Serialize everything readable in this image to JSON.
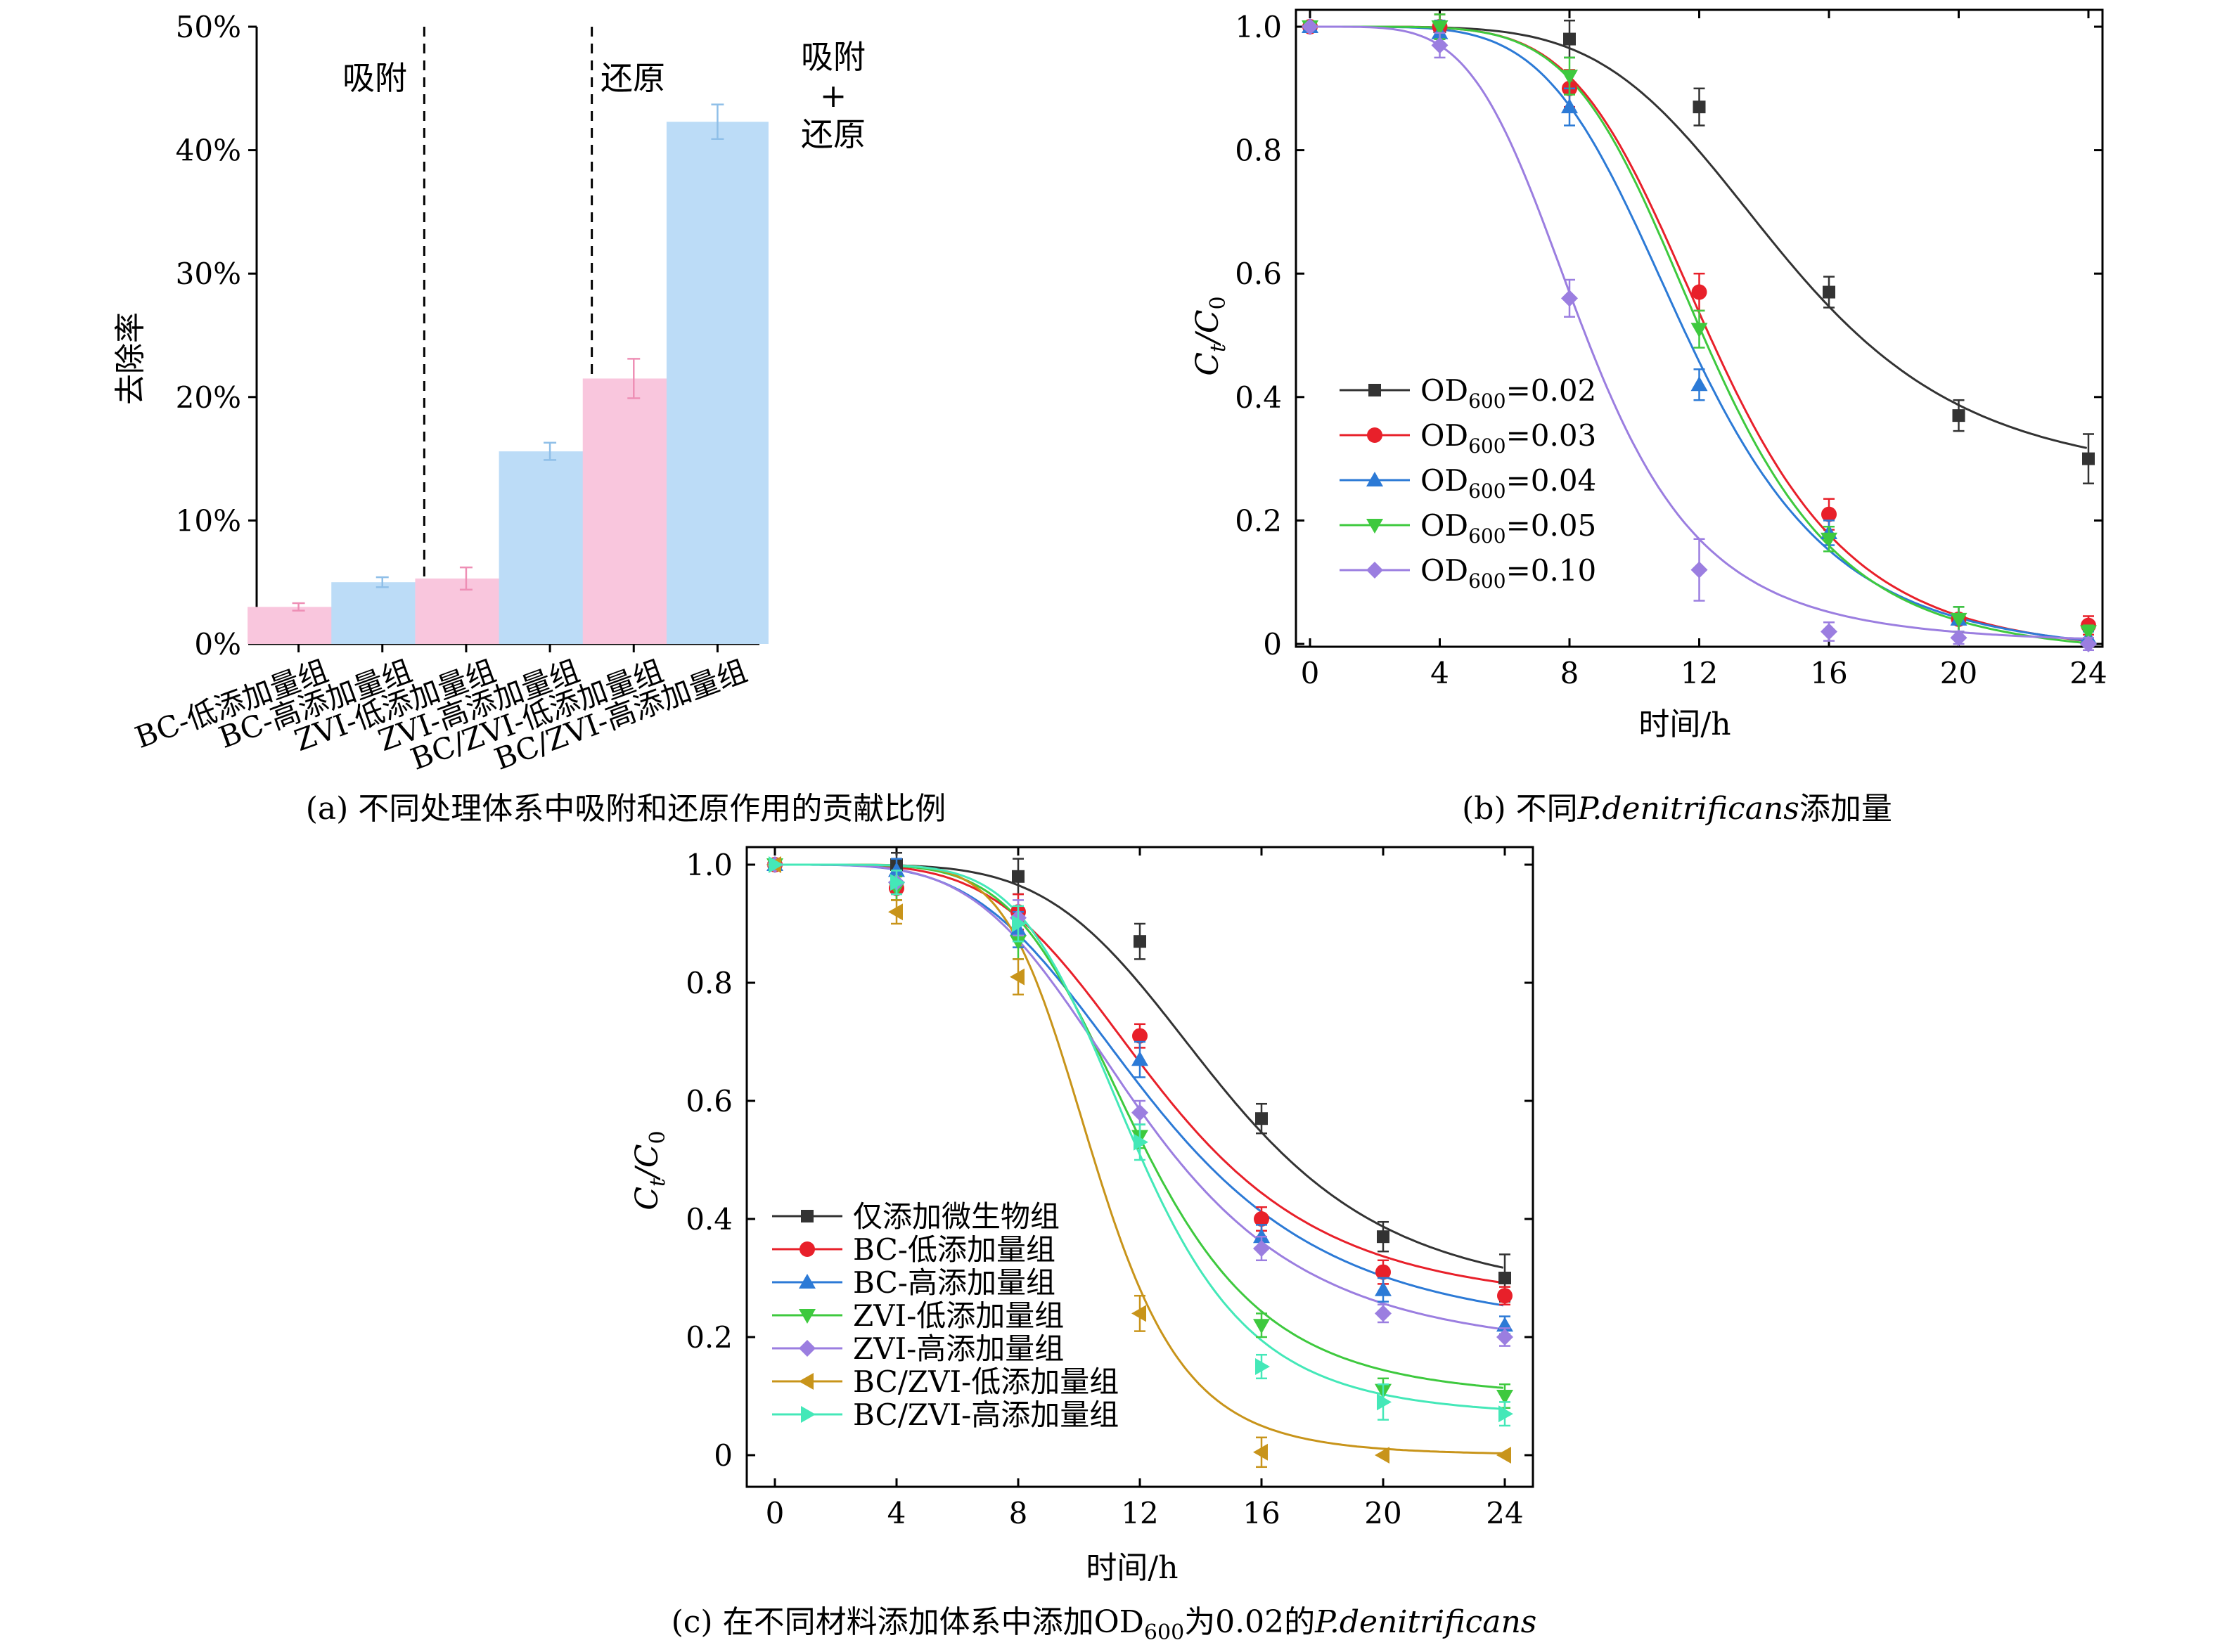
{
  "chart_data": [
    {
      "id": "a",
      "type": "bar",
      "caption": "(a) 不同处理体系中吸附和还原作用的贡献比例",
      "ylabel": "去除率",
      "ylim": [
        0,
        50
      ],
      "yticks": [
        "0%",
        "10%",
        "20%",
        "30%",
        "40%",
        "50%"
      ],
      "categories": [
        "BC-低添加量组",
        "BC-高添加量组",
        "ZVI-低添加量组",
        "ZVI-高添加量组",
        "BC/ZVI-低添加量组",
        "BC/ZVI-高添加量组"
      ],
      "values": [
        3.0,
        5.0,
        5.3,
        15.6,
        21.5,
        42.3
      ],
      "errors": [
        0.3,
        0.4,
        0.9,
        0.7,
        1.6,
        1.4
      ],
      "colors": [
        "#f9c6dd",
        "#bcdcf7",
        "#f9c6dd",
        "#bcdcf7",
        "#f9c6dd",
        "#bcdcf7"
      ],
      "error_colors": [
        "#ee8fb5",
        "#8fbfe8",
        "#ee8fb5",
        "#8fbfe8",
        "#ee8fb5",
        "#8fbfe8"
      ],
      "regions": [
        "吸附",
        "还原",
        "吸附",
        "+",
        "还原"
      ]
    },
    {
      "id": "b",
      "type": "line",
      "caption_prefix": "(b) 不同",
      "caption_italic": "P.denitrificans",
      "caption_suffix": "添加量",
      "xlabel": "时间/h",
      "ylabel_main": "C",
      "ylabel_sub1": "t",
      "ylabel_mid": "/C",
      "ylabel_sub2": "0",
      "xlim": [
        0,
        24
      ],
      "ylim": [
        0,
        1.0
      ],
      "xticks": [
        "0",
        "4",
        "8",
        "12",
        "16",
        "20",
        "24"
      ],
      "yticks": [
        "0",
        "0.2",
        "0.4",
        "0.6",
        "0.8",
        "1.0"
      ],
      "x": [
        0,
        4,
        8,
        12,
        16,
        20,
        24
      ],
      "series": [
        {
          "name_main": "OD",
          "name_sub": "600",
          "name_suffix": "=0.02",
          "color": "#333333",
          "marker": "square",
          "values": [
            1.0,
            1.0,
            0.98,
            0.87,
            0.57,
            0.37,
            0.3
          ],
          "errors": [
            0.0,
            0.02,
            0.03,
            0.03,
            0.025,
            0.025,
            0.04
          ],
          "fit": {
            "bottom": 0.26,
            "x0": 14.6,
            "p": 5.0
          }
        },
        {
          "name_main": "OD",
          "name_sub": "600",
          "name_suffix": "=0.03",
          "color": "#e8202a",
          "marker": "circle",
          "values": [
            1.0,
            1.0,
            0.9,
            0.57,
            0.21,
            0.04,
            0.03
          ],
          "errors": [
            0.0,
            0.02,
            0.03,
            0.03,
            0.025,
            0.02,
            0.015
          ],
          "fit": {
            "bottom": -0.02,
            "x0": 12.4,
            "p": 5.6
          }
        },
        {
          "name_main": "OD",
          "name_sub": "600",
          "name_suffix": "=0.04",
          "color": "#2c7ad6",
          "marker": "triangle-up",
          "values": [
            1.0,
            0.99,
            0.87,
            0.42,
            0.18,
            0.04,
            0.01
          ],
          "errors": [
            0.0,
            0.02,
            0.03,
            0.025,
            0.02,
            0.02,
            0.01
          ],
          "fit": {
            "bottom": -0.02,
            "x0": 11.7,
            "p": 5.1
          }
        },
        {
          "name_main": "OD",
          "name_sub": "600",
          "name_suffix": "=0.05",
          "color": "#3ec93e",
          "marker": "triangle-down",
          "values": [
            1.0,
            1.0,
            0.92,
            0.51,
            0.17,
            0.04,
            0.02
          ],
          "errors": [
            0.0,
            0.02,
            0.03,
            0.03,
            0.02,
            0.02,
            0.01
          ],
          "fit": {
            "bottom": -0.02,
            "x0": 12.2,
            "p": 5.7
          }
        },
        {
          "name_main": "OD",
          "name_sub": "600",
          "name_suffix": "=0.10",
          "color": "#9b7ee0",
          "marker": "diamond",
          "values": [
            1.0,
            0.97,
            0.56,
            0.12,
            0.02,
            0.01,
            0.0
          ],
          "errors": [
            0.0,
            0.02,
            0.03,
            0.05,
            0.015,
            0.01,
            0.01
          ],
          "fit": {
            "bottom": 0.0,
            "x0": 8.5,
            "p": 4.6
          }
        }
      ]
    },
    {
      "id": "c",
      "type": "line",
      "caption_prefix": "(c) 在不同材料添加体系中添加OD",
      "caption_sub": "600",
      "caption_mid": "为0.02的",
      "caption_italic": "P.denitrificans",
      "xlabel": "时间/h",
      "ylabel_main": "C",
      "ylabel_sub1": "t",
      "ylabel_mid": "/C",
      "ylabel_sub2": "0",
      "xlim": [
        0,
        24
      ],
      "ylim": [
        0,
        1.0
      ],
      "xticks": [
        "0",
        "4",
        "8",
        "12",
        "16",
        "20",
        "24"
      ],
      "yticks": [
        "0",
        "0.2",
        "0.4",
        "0.6",
        "0.8",
        "1.0"
      ],
      "x": [
        0,
        4,
        8,
        12,
        16,
        20,
        24
      ],
      "series": [
        {
          "name": "仅添加微生物组",
          "color": "#333333",
          "marker": "square",
          "values": [
            1.0,
            1.0,
            0.98,
            0.87,
            0.57,
            0.37,
            0.3
          ],
          "errors": [
            0.0,
            0.02,
            0.03,
            0.03,
            0.025,
            0.025,
            0.04
          ],
          "fit": {
            "bottom": 0.26,
            "x0": 14.6,
            "p": 5.0
          }
        },
        {
          "name": "BC-低添加量组",
          "color": "#e8202a",
          "marker": "circle",
          "values": [
            1.0,
            0.96,
            0.92,
            0.71,
            0.4,
            0.31,
            0.27
          ],
          "errors": [
            0.0,
            0.02,
            0.03,
            0.02,
            0.02,
            0.02,
            0.015
          ],
          "fit": {
            "bottom": 0.25,
            "x0": 12.6,
            "p": 4.4
          }
        },
        {
          "name": "BC-高添加量组",
          "color": "#2c7ad6",
          "marker": "triangle-up",
          "values": [
            1.0,
            0.99,
            0.89,
            0.67,
            0.37,
            0.28,
            0.22
          ],
          "errors": [
            0.0,
            0.02,
            0.03,
            0.03,
            0.02,
            0.02,
            0.015
          ],
          "fit": {
            "bottom": 0.2,
            "x0": 12.4,
            "p": 4.0
          }
        },
        {
          "name": "ZVI-低添加量组",
          "color": "#3ec93e",
          "marker": "triangle-down",
          "values": [
            1.0,
            0.96,
            0.87,
            0.54,
            0.22,
            0.11,
            0.1
          ],
          "errors": [
            0.0,
            0.02,
            0.03,
            0.02,
            0.02,
            0.02,
            0.02
          ],
          "fit": {
            "bottom": 0.095,
            "x0": 11.9,
            "p": 5.5
          }
        },
        {
          "name": "ZVI-高添加量组",
          "color": "#9b7ee0",
          "marker": "diamond",
          "values": [
            1.0,
            0.97,
            0.91,
            0.58,
            0.35,
            0.24,
            0.2
          ],
          "errors": [
            0.0,
            0.02,
            0.03,
            0.02,
            0.02,
            0.015,
            0.015
          ],
          "fit": {
            "bottom": 0.17,
            "x0": 12.0,
            "p": 4.2
          }
        },
        {
          "name": "BC/ZVI-低添加量组",
          "color": "#c8941a",
          "marker": "triangle-left",
          "values": [
            1.0,
            0.92,
            0.81,
            0.24,
            0.005,
            0.0,
            0.0
          ],
          "errors": [
            0.0,
            0.02,
            0.03,
            0.03,
            0.025,
            0.0,
            0.0
          ],
          "fit": {
            "bottom": 0.0,
            "x0": 10.5,
            "p": 7.0
          }
        },
        {
          "name": "BC/ZVI-高添加量组",
          "color": "#44e8b8",
          "marker": "triangle-right",
          "values": [
            1.0,
            0.97,
            0.9,
            0.53,
            0.15,
            0.09,
            0.07
          ],
          "errors": [
            0.0,
            0.02,
            0.03,
            0.03,
            0.02,
            0.03,
            0.02
          ],
          "fit": {
            "bottom": 0.065,
            "x0": 11.8,
            "p": 6.0
          }
        }
      ]
    }
  ]
}
